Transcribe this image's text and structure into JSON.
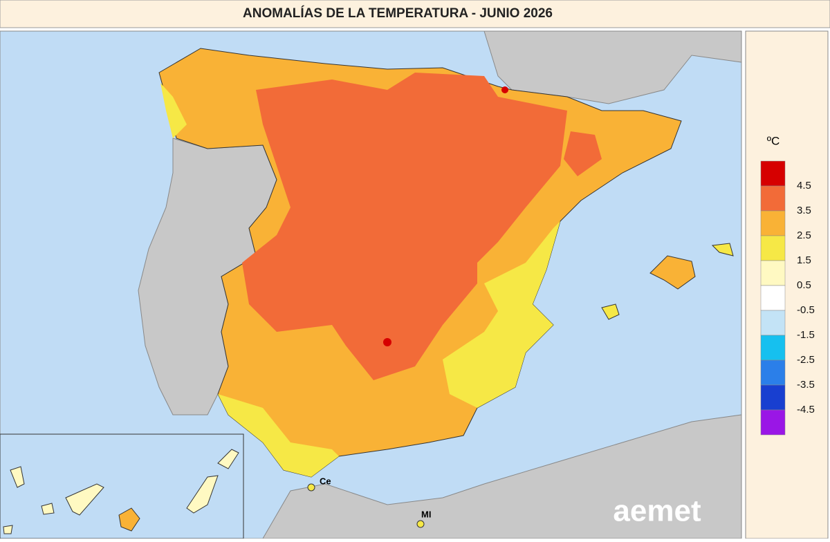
{
  "header": {
    "title": "ANOMALÍAS DE LA TEMPERATURA - JUNIO 2026"
  },
  "legend": {
    "unit": "ºC",
    "labels": [
      4.5,
      3.5,
      2.5,
      1.5,
      0.5,
      -0.5,
      -1.5,
      -2.5,
      -3.5,
      -4.5
    ],
    "colors": [
      "#d60000",
      "#f26b38",
      "#f9b236",
      "#f6e846",
      "#fff9c2",
      "#ffffff",
      "#c3e3f6",
      "#16c0ef",
      "#2b7fe9",
      "#183fd0",
      "#9a16e6"
    ]
  },
  "map_labels": {
    "ceuta": "Ce",
    "melilla": "MI"
  },
  "logo": "aemet"
}
